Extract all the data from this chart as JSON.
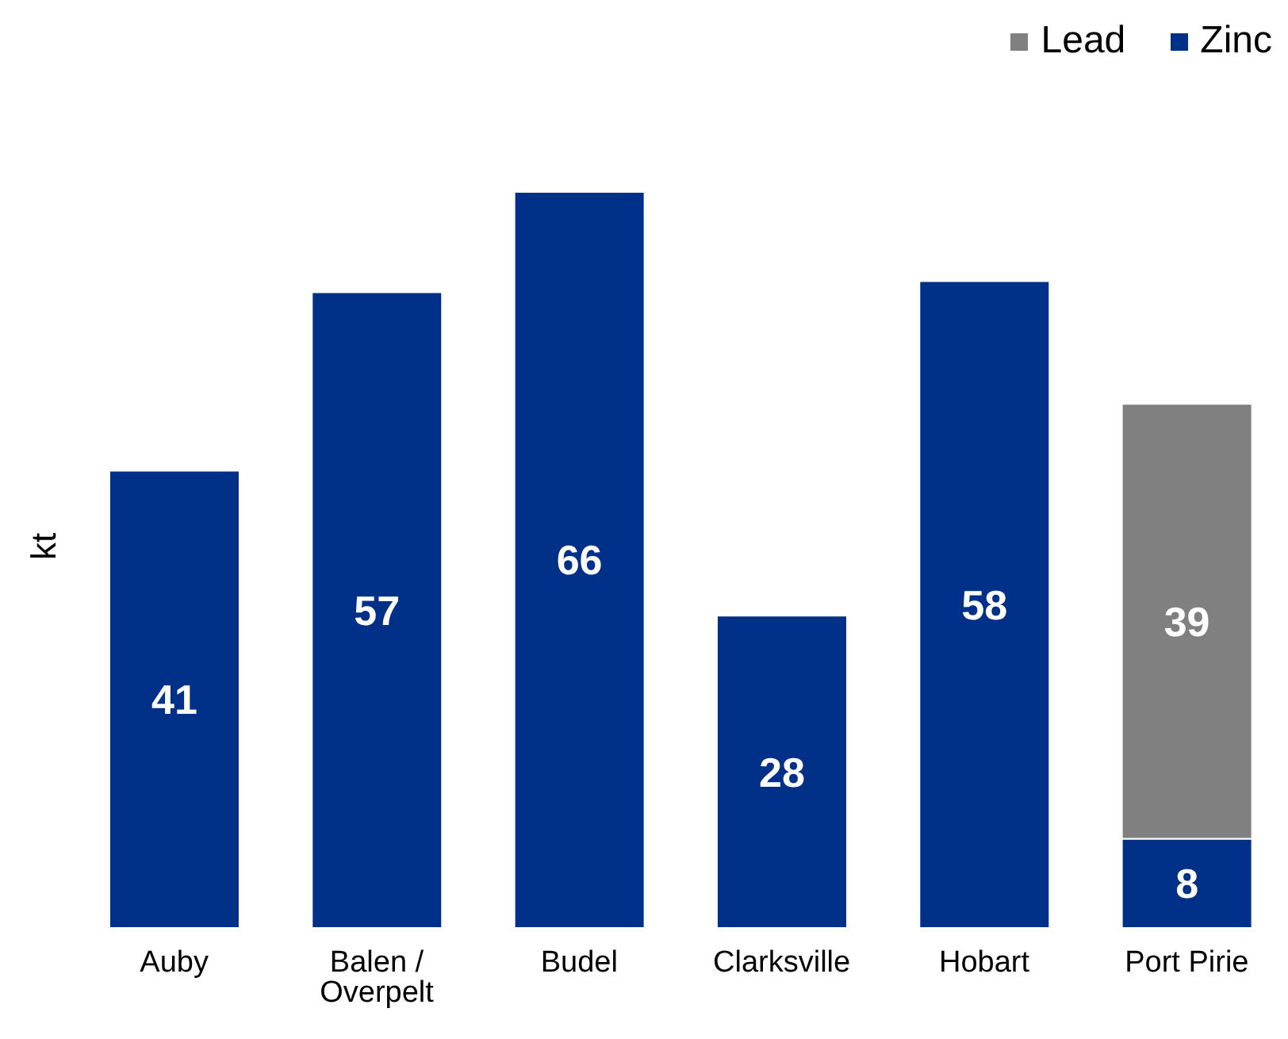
{
  "chart_data": {
    "type": "bar",
    "stacked": true,
    "ylabel": "kt",
    "categories": [
      "Auby",
      "Balen / Overpelt",
      "Budel",
      "Clarksville",
      "Hobart",
      "Port Pirie"
    ],
    "series": [
      {
        "name": "Zinc",
        "color": "#003087",
        "values": [
          41,
          57,
          66,
          28,
          58,
          8
        ]
      },
      {
        "name": "Lead",
        "color": "#808080",
        "values": [
          null,
          null,
          null,
          null,
          null,
          39
        ]
      }
    ],
    "data_labels": true,
    "legend": "top right"
  }
}
